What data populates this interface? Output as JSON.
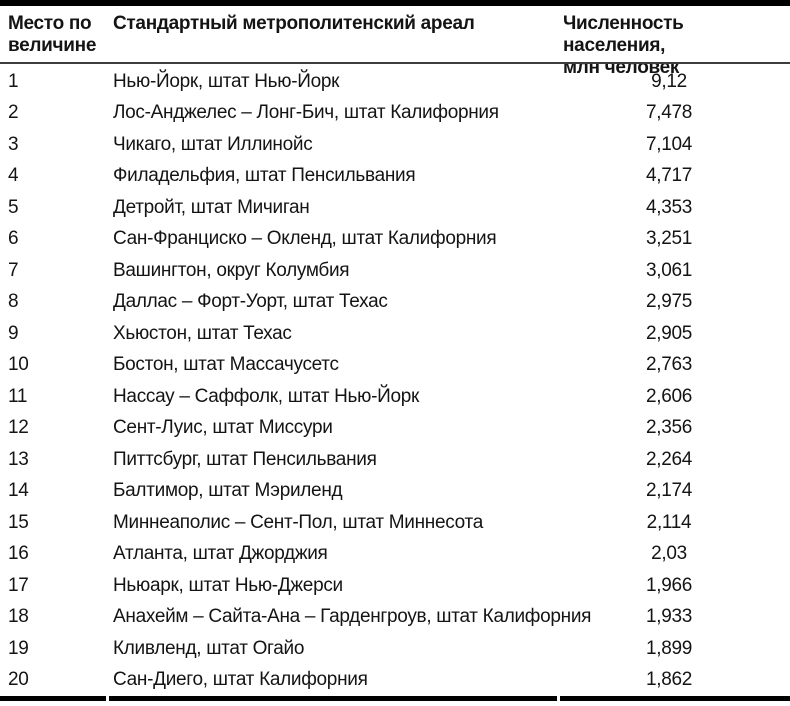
{
  "page": {
    "background": "#ffffff",
    "text_color": "#141414",
    "rule_color": "#000000"
  },
  "table": {
    "columns": [
      {
        "id": "rank",
        "header": "Место по\nвеличине"
      },
      {
        "id": "area",
        "header": "Стандартный метрополитенский ареал"
      },
      {
        "id": "population",
        "header": "Численность населения,\nмлн человек"
      }
    ],
    "rows": [
      {
        "rank": "1",
        "area": "Нью-Йорк, штат Нью-Йорк",
        "population": "9,12"
      },
      {
        "rank": "2",
        "area": "Лос-Анджелес – Лонг-Бич, штат Калифорния",
        "population": "7,478"
      },
      {
        "rank": "3",
        "area": "Чикаго, штат Иллинойс",
        "population": "7,104"
      },
      {
        "rank": "4",
        "area": "Филадельфия, штат Пенсильвания",
        "population": "4,717"
      },
      {
        "rank": "5",
        "area": "Детройт, штат Мичиган",
        "population": "4,353"
      },
      {
        "rank": "6",
        "area": "Сан-Франциско – Окленд, штат Калифорния",
        "population": "3,251"
      },
      {
        "rank": "7",
        "area": "Вашингтон, округ Колумбия",
        "population": "3,061"
      },
      {
        "rank": "8",
        "area": "Даллас – Форт-Уорт, штат Техас",
        "population": "2,975"
      },
      {
        "rank": "9",
        "area": "Хьюстон, штат Техас",
        "population": "2,905"
      },
      {
        "rank": "10",
        "area": "Бостон, штат Массачусетс",
        "population": "2,763"
      },
      {
        "rank": "11",
        "area": "Нассау – Саффолк, штат Нью-Йорк",
        "population": "2,606"
      },
      {
        "rank": "12",
        "area": "Сент-Луис, штат Миссури",
        "population": "2,356"
      },
      {
        "rank": "13",
        "area": "Питтсбург, штат Пенсильвания",
        "population": "2,264"
      },
      {
        "rank": "14",
        "area": "Балтимор, штат Мэриленд",
        "population": "2,174"
      },
      {
        "rank": "15",
        "area": "Миннеаполис – Сент-Пол, штат Миннесота",
        "population": "2,114"
      },
      {
        "rank": "16",
        "area": "Атланта, штат Джорджия",
        "population": "2,03"
      },
      {
        "rank": "17",
        "area": "Ньюарк, штат Нью-Джерси",
        "population": "1,966"
      },
      {
        "rank": "18",
        "area": "Анахейм – Сайта-Ана – Гарденгроув, штат Калифорния",
        "population": "1,933"
      },
      {
        "rank": "19",
        "area": "Кливленд, штат Огайо",
        "population": "1,899"
      },
      {
        "rank": "20",
        "area": "Сан-Диего, штат Калифорния",
        "population": "1,862"
      }
    ]
  }
}
